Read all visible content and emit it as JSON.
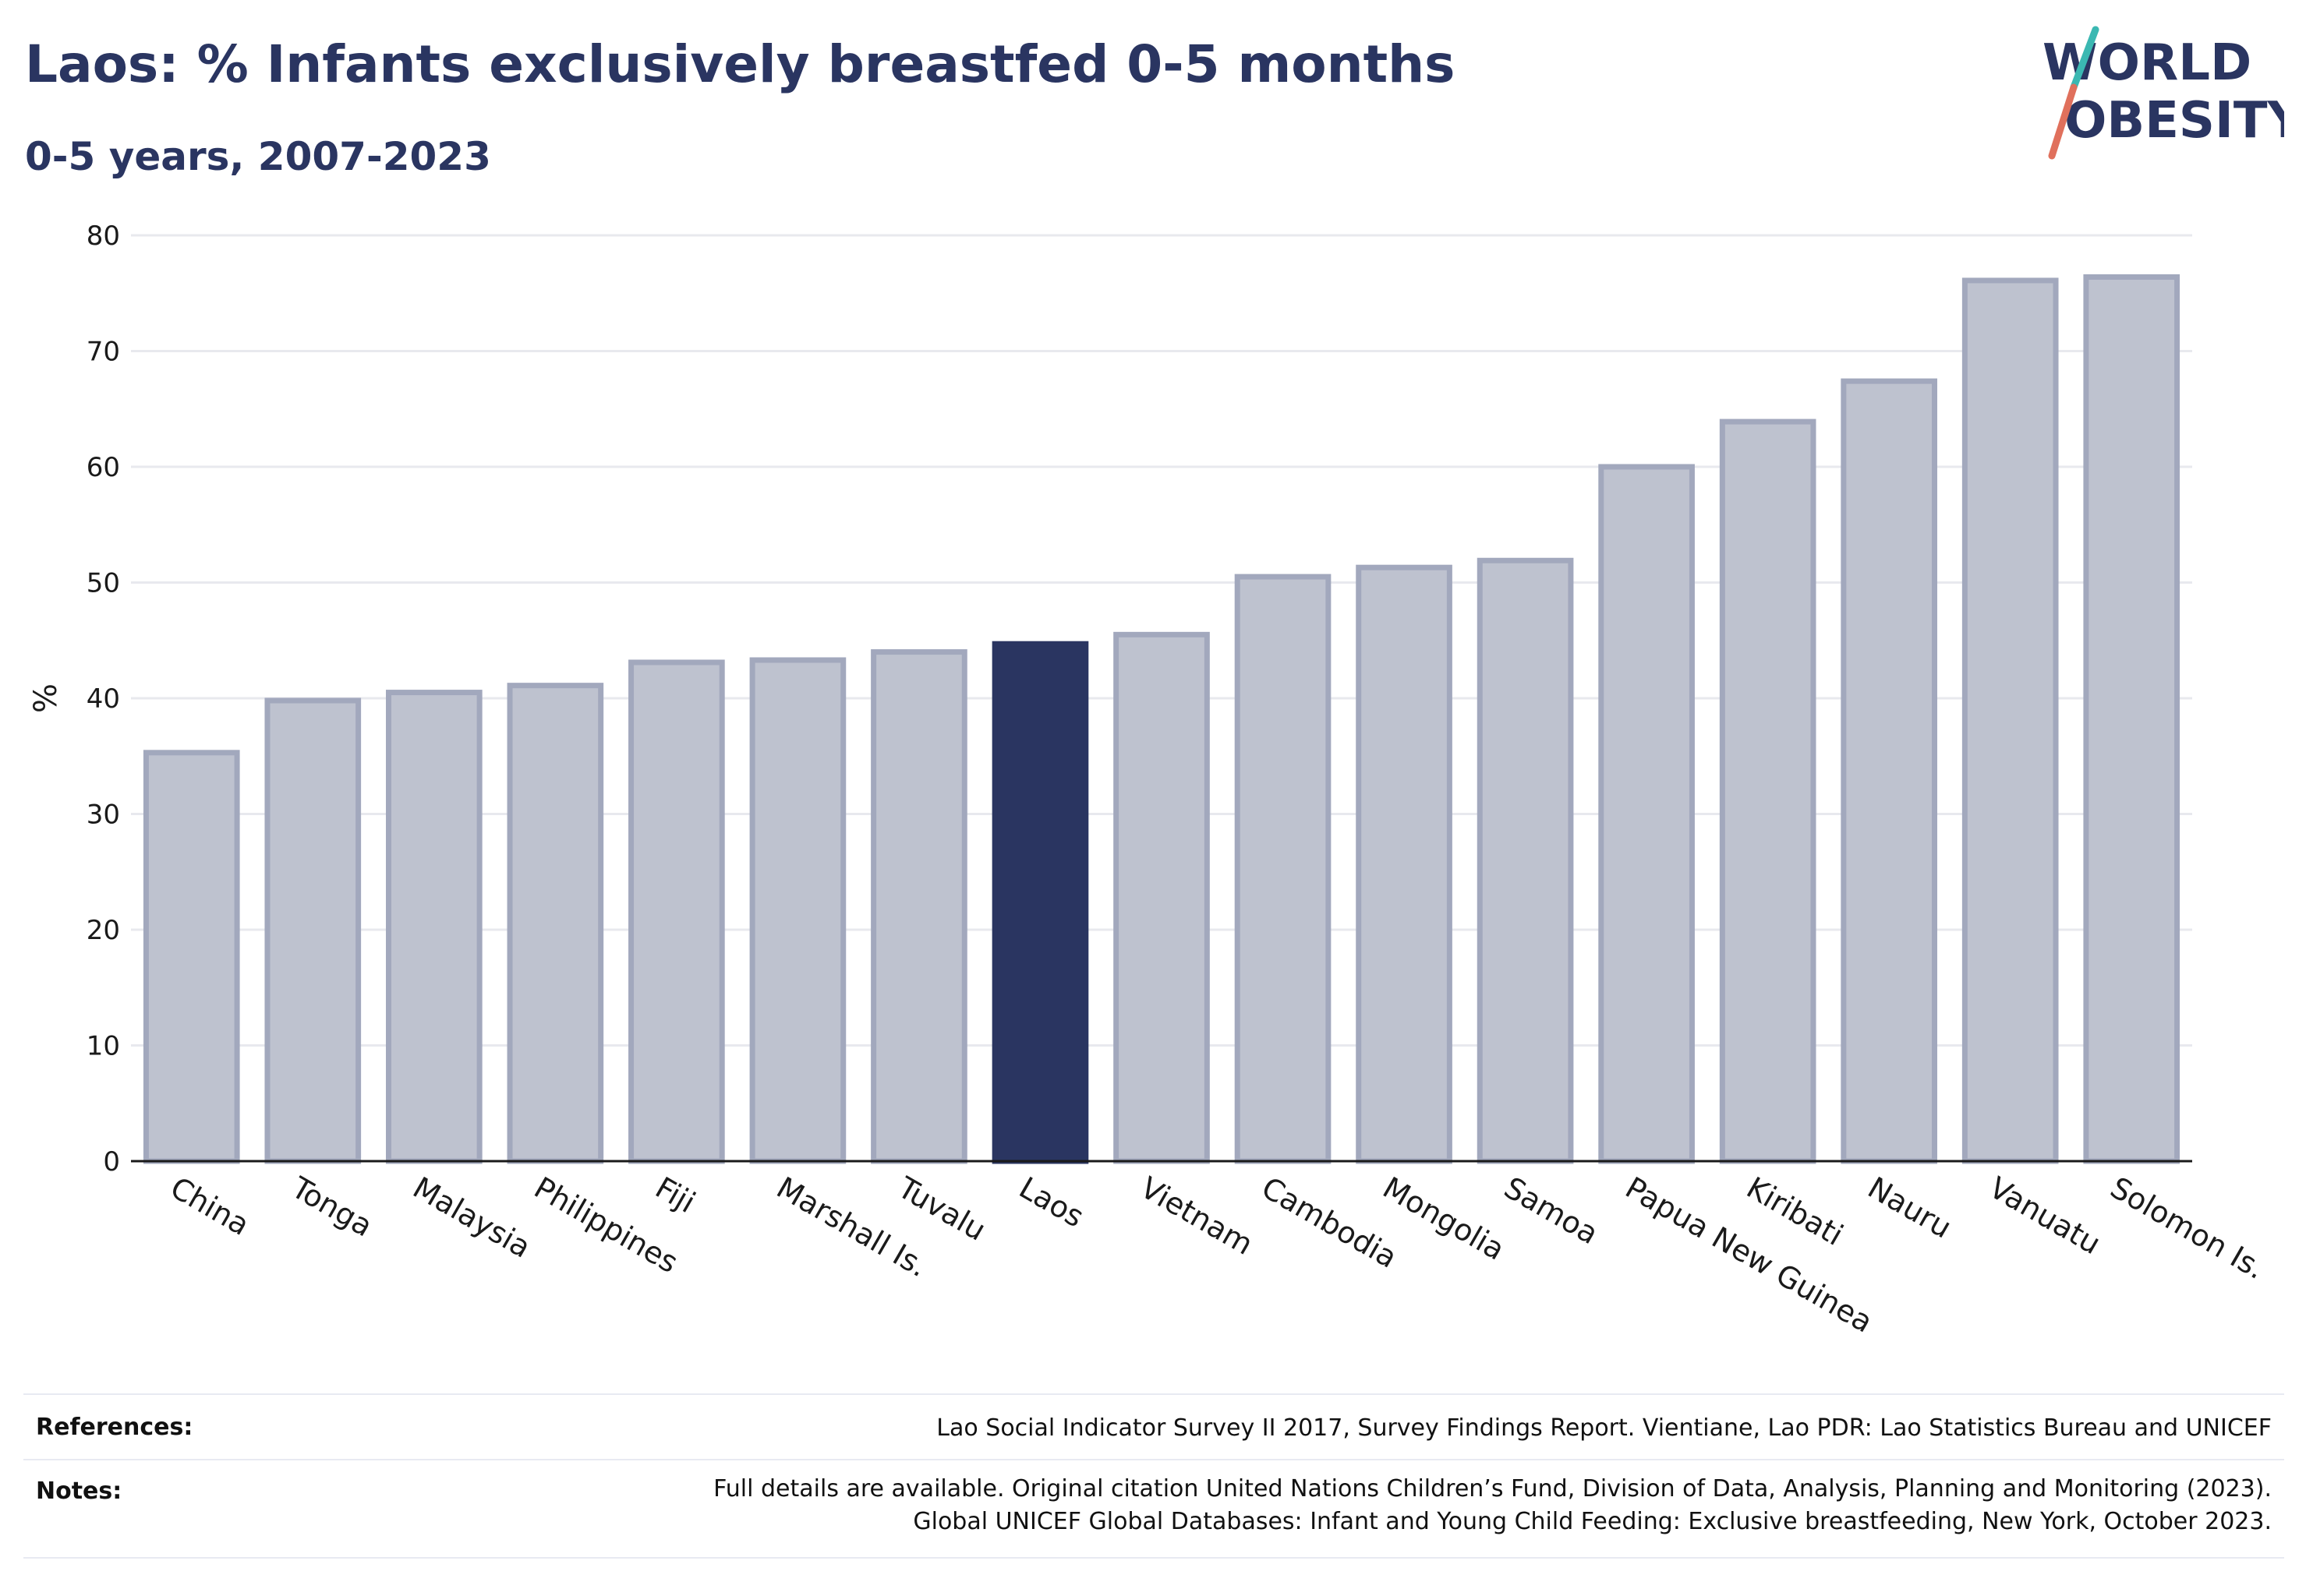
{
  "header": {
    "title": "Laos: % Infants exclusively breastfed 0-5 months",
    "subtitle": "0-5 years, 2007-2023"
  },
  "logo": {
    "line1": "WORLD",
    "line2": "OBESITY",
    "slash_colors": [
      "#3bb8b2",
      "#e0705c"
    ],
    "text_color": "#2a3561"
  },
  "chart_data": {
    "type": "bar",
    "ylabel": "%",
    "ylim": [
      0,
      80
    ],
    "yticks": [
      0,
      10,
      20,
      30,
      40,
      50,
      60,
      70,
      80
    ],
    "grid": true,
    "categories": [
      "China",
      "Tonga",
      "Malaysia",
      "Philippines",
      "Fiji",
      "Marshall Is.",
      "Tuvalu",
      "Laos",
      "Vietnam",
      "Cambodia",
      "Mongolia",
      "Samoa",
      "Papua New Guinea",
      "Kiribati",
      "Nauru",
      "Vanuatu",
      "Solomon Is."
    ],
    "values": [
      35.3,
      39.8,
      40.5,
      41.1,
      43.1,
      43.3,
      44.0,
      44.7,
      45.5,
      50.5,
      51.3,
      51.9,
      60.0,
      63.9,
      67.4,
      76.1,
      76.4
    ],
    "highlight": "Laos",
    "colors": {
      "bar_fill": "#bec2cf",
      "bar_stroke": "#a2a8bd",
      "highlight": "#2a3561",
      "grid": "#e8e9ee",
      "axis": "#1a1a1a"
    }
  },
  "footer": {
    "references_label": "References:",
    "references_text": "Lao Social Indicator Survey II 2017, Survey Findings Report. Vientiane, Lao PDR: Lao Statistics Bureau and UNICEF",
    "notes_label": "Notes:",
    "notes_line1": "Full details are available. Original citation United Nations Children’s Fund, Division of Data, Analysis, Planning and Monitoring (2023).",
    "notes_line2": "Global UNICEF Global Databases: Infant and Young Child Feeding: Exclusive breastfeeding, New York, October 2023."
  }
}
